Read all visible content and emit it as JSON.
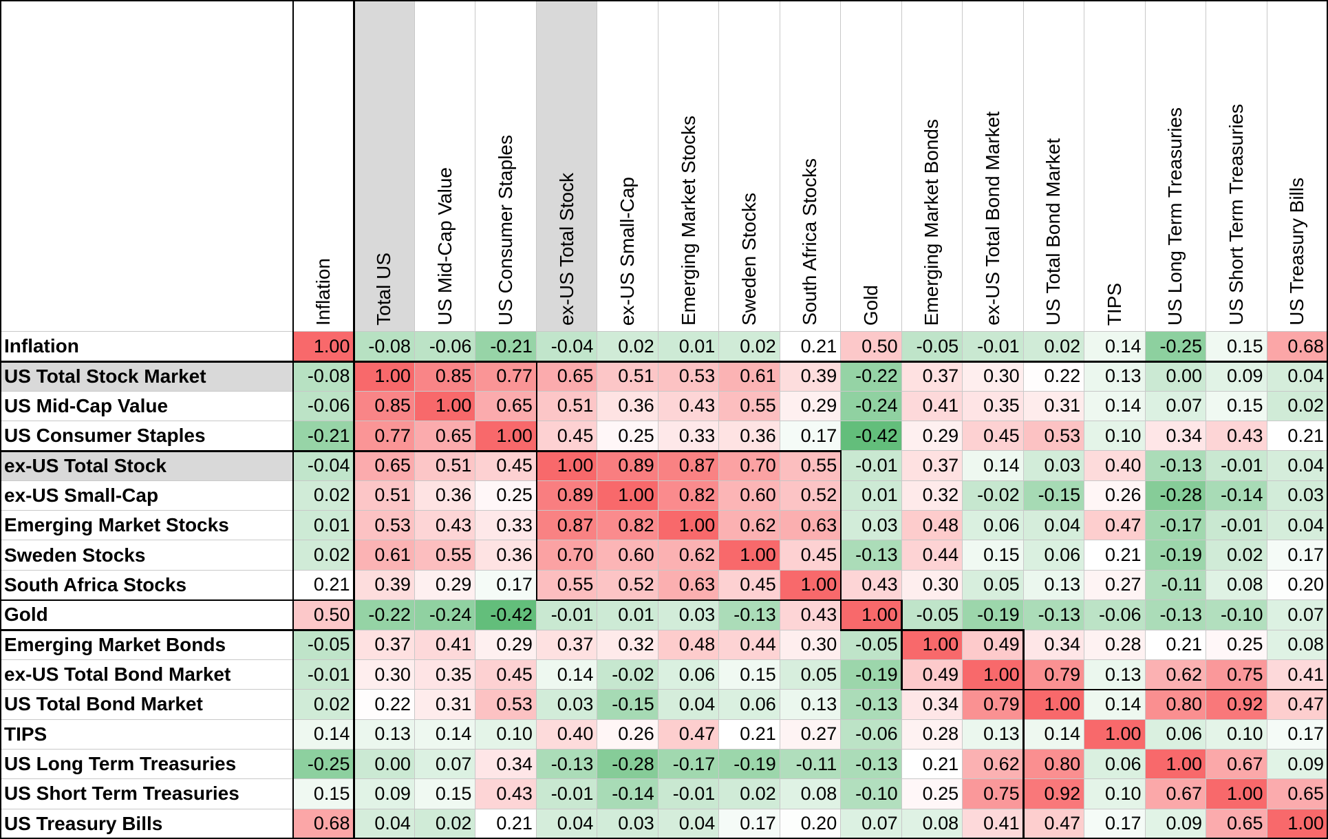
{
  "columns": [
    "Inflation",
    "Total US",
    "US Mid-Cap Value",
    "US Consumer Staples",
    "ex-US Total Stock",
    "ex-US Small-Cap",
    "Emerging Market Stocks",
    "Sweden Stocks",
    "South Africa Stocks",
    "Gold",
    "Emerging Market Bonds",
    "ex-US Total Bond Market",
    "US Total Bond Market",
    "TIPS",
    "US Long Term Treasuries",
    "US Short Term Treasuries",
    "US Treasury Bills"
  ],
  "rows": [
    {
      "label": "Inflation",
      "values": [
        "1.00",
        "-0.08",
        "-0.06",
        "-0.21",
        "-0.04",
        "0.02",
        "0.01",
        "0.02",
        "0.21",
        "0.50",
        "-0.05",
        "-0.01",
        "0.02",
        "0.14",
        "-0.25",
        "0.15",
        "0.68"
      ]
    },
    {
      "label": "US Total Stock Market",
      "values": [
        "-0.08",
        "1.00",
        "0.85",
        "0.77",
        "0.65",
        "0.51",
        "0.53",
        "0.61",
        "0.39",
        "-0.22",
        "0.37",
        "0.30",
        "0.22",
        "0.13",
        "0.00",
        "0.09",
        "0.04"
      ]
    },
    {
      "label": "US Mid-Cap Value",
      "values": [
        "-0.06",
        "0.85",
        "1.00",
        "0.65",
        "0.51",
        "0.36",
        "0.43",
        "0.55",
        "0.29",
        "-0.24",
        "0.41",
        "0.35",
        "0.31",
        "0.14",
        "0.07",
        "0.15",
        "0.02"
      ]
    },
    {
      "label": "US Consumer Staples",
      "values": [
        "-0.21",
        "0.77",
        "0.65",
        "1.00",
        "0.45",
        "0.25",
        "0.33",
        "0.36",
        "0.17",
        "-0.42",
        "0.29",
        "0.45",
        "0.53",
        "0.10",
        "0.34",
        "0.43",
        "0.21"
      ]
    },
    {
      "label": "ex-US Total Stock",
      "values": [
        "-0.04",
        "0.65",
        "0.51",
        "0.45",
        "1.00",
        "0.89",
        "0.87",
        "0.70",
        "0.55",
        "-0.01",
        "0.37",
        "0.14",
        "0.03",
        "0.40",
        "-0.13",
        "-0.01",
        "0.04"
      ]
    },
    {
      "label": "ex-US Small-Cap",
      "values": [
        "0.02",
        "0.51",
        "0.36",
        "0.25",
        "0.89",
        "1.00",
        "0.82",
        "0.60",
        "0.52",
        "0.01",
        "0.32",
        "-0.02",
        "-0.15",
        "0.26",
        "-0.28",
        "-0.14",
        "0.03"
      ]
    },
    {
      "label": "Emerging Market Stocks",
      "values": [
        "0.01",
        "0.53",
        "0.43",
        "0.33",
        "0.87",
        "0.82",
        "1.00",
        "0.62",
        "0.63",
        "0.03",
        "0.48",
        "0.06",
        "0.04",
        "0.47",
        "-0.17",
        "-0.01",
        "0.04"
      ]
    },
    {
      "label": "Sweden Stocks",
      "values": [
        "0.02",
        "0.61",
        "0.55",
        "0.36",
        "0.70",
        "0.60",
        "0.62",
        "1.00",
        "0.45",
        "-0.13",
        "0.44",
        "0.15",
        "0.06",
        "0.21",
        "-0.19",
        "0.02",
        "0.17"
      ]
    },
    {
      "label": "South Africa Stocks",
      "values": [
        "0.21",
        "0.39",
        "0.29",
        "0.17",
        "0.55",
        "0.52",
        "0.63",
        "0.45",
        "1.00",
        "0.43",
        "0.30",
        "0.05",
        "0.13",
        "0.27",
        "-0.11",
        "0.08",
        "0.20"
      ]
    },
    {
      "label": "Gold",
      "values": [
        "0.50",
        "-0.22",
        "-0.24",
        "-0.42",
        "-0.01",
        "0.01",
        "0.03",
        "-0.13",
        "0.43",
        "1.00",
        "-0.05",
        "-0.19",
        "-0.13",
        "-0.06",
        "-0.13",
        "-0.10",
        "0.07"
      ]
    },
    {
      "label": "Emerging Market Bonds",
      "values": [
        "-0.05",
        "0.37",
        "0.41",
        "0.29",
        "0.37",
        "0.32",
        "0.48",
        "0.44",
        "0.30",
        "-0.05",
        "1.00",
        "0.49",
        "0.34",
        "0.28",
        "0.21",
        "0.25",
        "0.08"
      ]
    },
    {
      "label": "ex-US Total Bond Market",
      "values": [
        "-0.01",
        "0.30",
        "0.35",
        "0.45",
        "0.14",
        "-0.02",
        "0.06",
        "0.15",
        "0.05",
        "-0.19",
        "0.49",
        "1.00",
        "0.79",
        "0.13",
        "0.62",
        "0.75",
        "0.41"
      ]
    },
    {
      "label": "US Total Bond Market",
      "values": [
        "0.02",
        "0.22",
        "0.31",
        "0.53",
        "0.03",
        "-0.15",
        "0.04",
        "0.06",
        "0.13",
        "-0.13",
        "0.34",
        "0.79",
        "1.00",
        "0.14",
        "0.80",
        "0.92",
        "0.47"
      ]
    },
    {
      "label": "TIPS",
      "values": [
        "0.14",
        "0.13",
        "0.14",
        "0.10",
        "0.40",
        "0.26",
        "0.47",
        "0.21",
        "0.27",
        "-0.06",
        "0.28",
        "0.13",
        "0.14",
        "1.00",
        "0.06",
        "0.10",
        "0.17"
      ]
    },
    {
      "label": "US Long Term Treasuries",
      "values": [
        "-0.25",
        "0.00",
        "0.07",
        "0.34",
        "-0.13",
        "-0.28",
        "-0.17",
        "-0.19",
        "-0.11",
        "-0.13",
        "0.21",
        "0.62",
        "0.80",
        "0.06",
        "1.00",
        "0.67",
        "0.09"
      ]
    },
    {
      "label": "US Short Term Treasuries",
      "values": [
        "0.15",
        "0.09",
        "0.15",
        "0.43",
        "-0.01",
        "-0.14",
        "-0.01",
        "0.02",
        "0.08",
        "-0.10",
        "0.25",
        "0.75",
        "0.92",
        "0.10",
        "0.67",
        "1.00",
        "0.65"
      ]
    },
    {
      "label": "US Treasury Bills",
      "values": [
        "0.68",
        "0.04",
        "0.02",
        "0.21",
        "0.04",
        "0.03",
        "0.04",
        "0.17",
        "0.20",
        "0.07",
        "0.08",
        "0.41",
        "0.47",
        "0.17",
        "0.09",
        "0.65",
        "1.00"
      ]
    }
  ],
  "highlighted_columns": [
    1,
    4
  ],
  "highlighted_rows": [
    1,
    4
  ],
  "colors": {
    "low": "#63be7b",
    "mid": "#ffffff",
    "high": "#f8696b",
    "highlight": "#d9d9d9"
  }
}
